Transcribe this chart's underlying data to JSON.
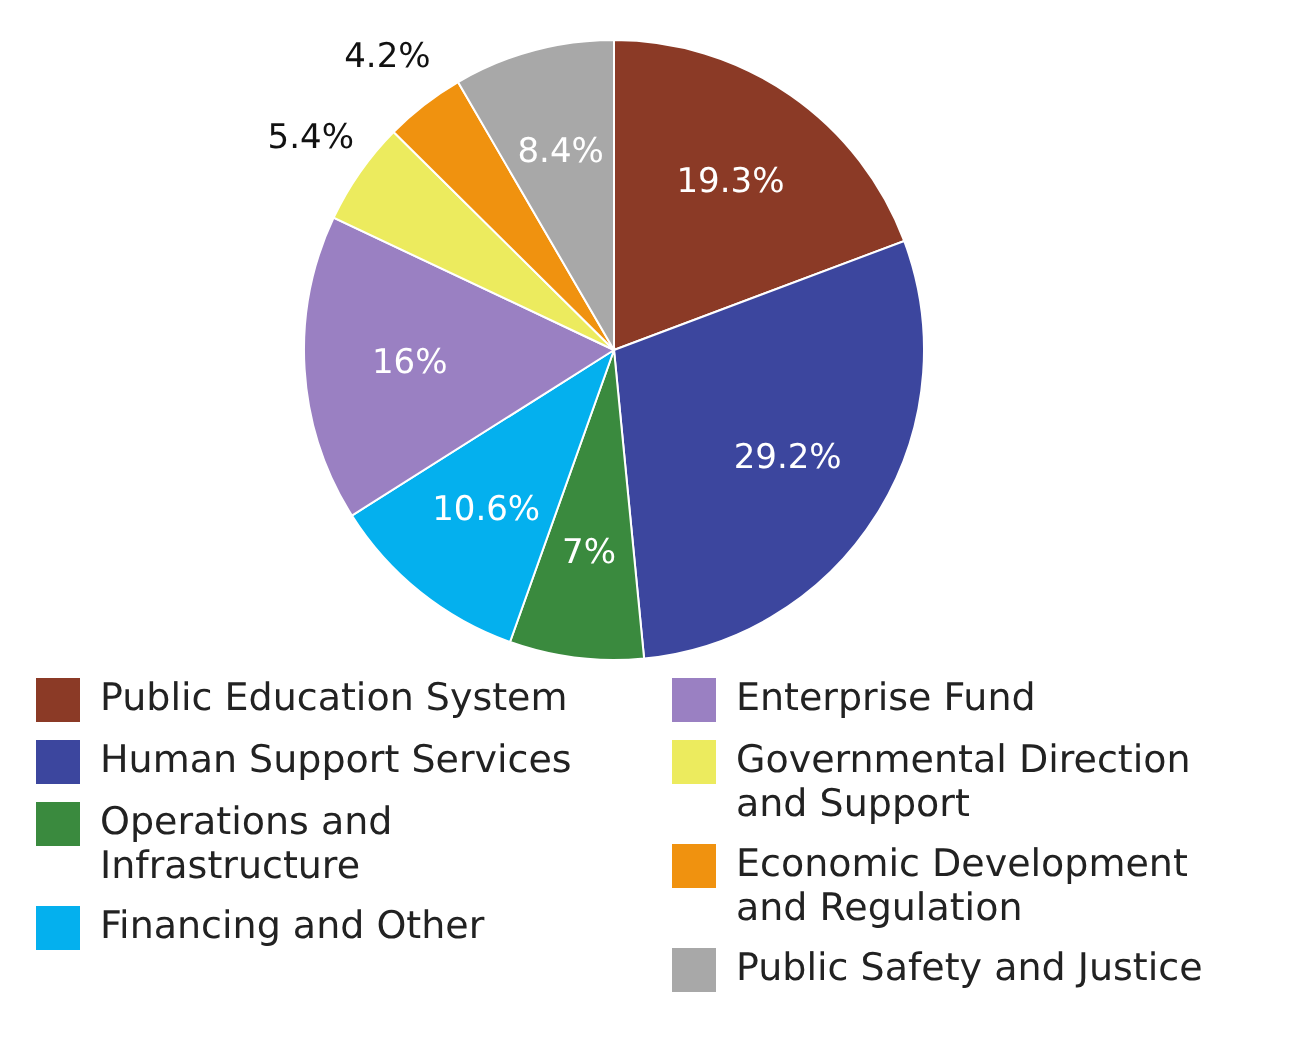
{
  "chart_data": {
    "type": "pie",
    "categories": [
      "Public Education System",
      "Human Support Services",
      "Operations and Infrastructure",
      "Financing and Other",
      "Enterprise Fund",
      "Governmental Direction and Support",
      "Economic Development and Regulation",
      "Public Safety and Justice"
    ],
    "values": [
      19.3,
      29.2,
      7,
      10.6,
      16,
      5.4,
      4.2,
      8.4
    ],
    "value_labels": [
      "19.3%",
      "29.2%",
      "7%",
      "10.6%",
      "16%",
      "5.4%",
      "4.2%",
      "8.4%"
    ],
    "colors": [
      "#8b3a26",
      "#3c469e",
      "#3a8a3e",
      "#04b0ee",
      "#9a80c2",
      "#eceb5e",
      "#f0920f",
      "#a8a8a8"
    ],
    "legend": "bottom"
  }
}
